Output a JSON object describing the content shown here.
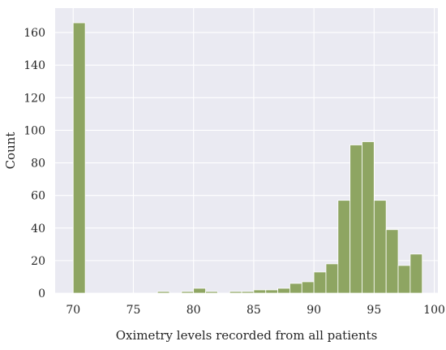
{
  "chart_data": {
    "type": "bar",
    "title": "",
    "xlabel": "Oximetry levels recorded from all patients",
    "ylabel": "Count",
    "xlim": [
      68.5,
      100.3
    ],
    "ylim": [
      0,
      175
    ],
    "x_ticks": [
      70,
      75,
      80,
      85,
      90,
      95,
      100
    ],
    "y_ticks": [
      0,
      20,
      40,
      60,
      80,
      100,
      120,
      140,
      160
    ],
    "grid": true,
    "legend": "none",
    "bar_color": "#8ea562",
    "background_color": "#eaeaf2",
    "bins": [
      {
        "x0": 70,
        "x1": 71,
        "count": 166
      },
      {
        "x0": 71,
        "x1": 72,
        "count": 0
      },
      {
        "x0": 72,
        "x1": 73,
        "count": 0
      },
      {
        "x0": 73,
        "x1": 74,
        "count": 0
      },
      {
        "x0": 74,
        "x1": 75,
        "count": 0
      },
      {
        "x0": 75,
        "x1": 76,
        "count": 0
      },
      {
        "x0": 76,
        "x1": 77,
        "count": 0
      },
      {
        "x0": 77,
        "x1": 78,
        "count": 1
      },
      {
        "x0": 78,
        "x1": 79,
        "count": 0
      },
      {
        "x0": 79,
        "x1": 80,
        "count": 1
      },
      {
        "x0": 80,
        "x1": 81,
        "count": 3
      },
      {
        "x0": 81,
        "x1": 82,
        "count": 1
      },
      {
        "x0": 82,
        "x1": 83,
        "count": 0
      },
      {
        "x0": 83,
        "x1": 84,
        "count": 1
      },
      {
        "x0": 84,
        "x1": 85,
        "count": 1
      },
      {
        "x0": 85,
        "x1": 86,
        "count": 2
      },
      {
        "x0": 86,
        "x1": 87,
        "count": 2
      },
      {
        "x0": 87,
        "x1": 88,
        "count": 3
      },
      {
        "x0": 88,
        "x1": 89,
        "count": 6
      },
      {
        "x0": 89,
        "x1": 90,
        "count": 7
      },
      {
        "x0": 90,
        "x1": 91,
        "count": 13
      },
      {
        "x0": 91,
        "x1": 92,
        "count": 18
      },
      {
        "x0": 92,
        "x1": 93,
        "count": 57
      },
      {
        "x0": 93,
        "x1": 94,
        "count": 91
      },
      {
        "x0": 94,
        "x1": 95,
        "count": 93
      },
      {
        "x0": 95,
        "x1": 96,
        "count": 57
      },
      {
        "x0": 96,
        "x1": 97,
        "count": 39
      },
      {
        "x0": 97,
        "x1": 98,
        "count": 17
      },
      {
        "x0": 98,
        "x1": 99,
        "count": 24
      }
    ]
  }
}
